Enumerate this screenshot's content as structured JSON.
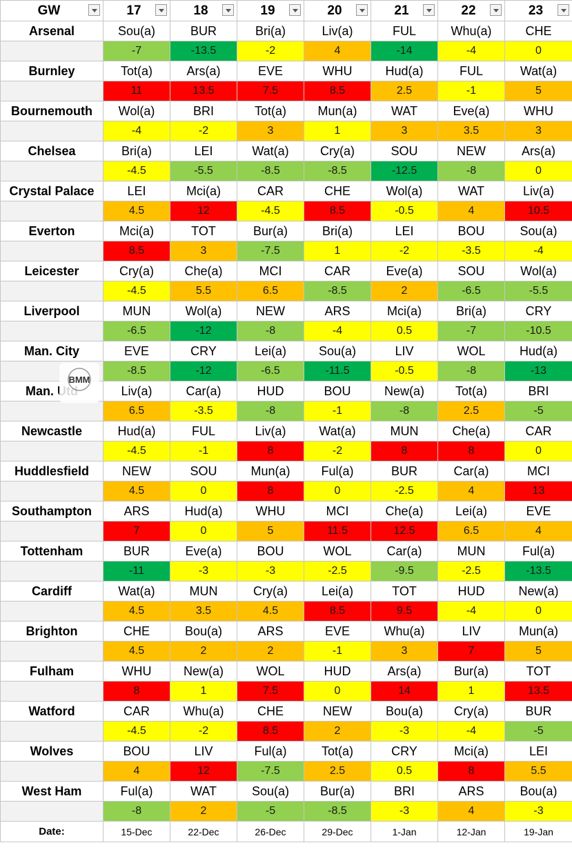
{
  "header": {
    "label": "GW",
    "gameweeks": [
      "17",
      "18",
      "19",
      "20",
      "21",
      "22",
      "23"
    ]
  },
  "colors": {
    "dark_green": "#00b050",
    "light_green": "#92d050",
    "yellow": "#ffff00",
    "orange": "#ffc000",
    "red": "#ff0000"
  },
  "teams": [
    {
      "name": "Arsenal",
      "fixtures": [
        "Sou(a)",
        "BUR",
        "Bri(a)",
        "Liv(a)",
        "FUL",
        "Whu(a)",
        "CHE"
      ],
      "scores": [
        "-7",
        "-13.5",
        "-2",
        "4",
        "-14",
        "-4",
        "0"
      ]
    },
    {
      "name": "Burnley",
      "fixtures": [
        "Tot(a)",
        "Ars(a)",
        "EVE",
        "WHU",
        "Hud(a)",
        "FUL",
        "Wat(a)"
      ],
      "scores": [
        "11",
        "13.5",
        "7.5",
        "8.5",
        "2.5",
        "-1",
        "5"
      ]
    },
    {
      "name": "Bournemouth",
      "fixtures": [
        "Wol(a)",
        "BRI",
        "Tot(a)",
        "Mun(a)",
        "WAT",
        "Eve(a)",
        "WHU"
      ],
      "scores": [
        "-4",
        "-2",
        "3",
        "1",
        "3",
        "3.5",
        "3"
      ]
    },
    {
      "name": "Chelsea",
      "fixtures": [
        "Bri(a)",
        "LEI",
        "Wat(a)",
        "Cry(a)",
        "SOU",
        "NEW",
        "Ars(a)"
      ],
      "scores": [
        "-4.5",
        "-5.5",
        "-8.5",
        "-8.5",
        "-12.5",
        "-8",
        "0"
      ]
    },
    {
      "name": "Crystal Palace",
      "fixtures": [
        "LEI",
        "Mci(a)",
        "CAR",
        "CHE",
        "Wol(a)",
        "WAT",
        "Liv(a)"
      ],
      "scores": [
        "4.5",
        "12",
        "-4.5",
        "8.5",
        "-0.5",
        "4",
        "10.5"
      ]
    },
    {
      "name": "Everton",
      "fixtures": [
        "Mci(a)",
        "TOT",
        "Bur(a)",
        "Bri(a)",
        "LEI",
        "BOU",
        "Sou(a)"
      ],
      "scores": [
        "8.5",
        "3",
        "-7.5",
        "1",
        "-2",
        "-3.5",
        "-4"
      ]
    },
    {
      "name": "Leicester",
      "fixtures": [
        "Cry(a)",
        "Che(a)",
        "MCI",
        "CAR",
        "Eve(a)",
        "SOU",
        "Wol(a)"
      ],
      "scores": [
        "-4.5",
        "5.5",
        "6.5",
        "-8.5",
        "2",
        "-6.5",
        "-5.5"
      ]
    },
    {
      "name": "Liverpool",
      "fixtures": [
        "MUN",
        "Wol(a)",
        "NEW",
        "ARS",
        "Mci(a)",
        "Bri(a)",
        "CRY"
      ],
      "scores": [
        "-6.5",
        "-12",
        "-8",
        "-4",
        "0.5",
        "-7",
        "-10.5"
      ]
    },
    {
      "name": "Man. City",
      "fixtures": [
        "EVE",
        "CRY",
        "Lei(a)",
        "Sou(a)",
        "LIV",
        "WOL",
        "Hud(a)"
      ],
      "scores": [
        "-8.5",
        "-12",
        "-6.5",
        "-11.5",
        "-0.5",
        "-8",
        "-13"
      ]
    },
    {
      "name": "Man. Utd",
      "fixtures": [
        "Liv(a)",
        "Car(a)",
        "HUD",
        "BOU",
        "New(a)",
        "Tot(a)",
        "BRI"
      ],
      "scores": [
        "6.5",
        "-3.5",
        "-8",
        "-1",
        "-8",
        "2.5",
        "-5"
      ]
    },
    {
      "name": "Newcastle",
      "fixtures": [
        "Hud(a)",
        "FUL",
        "Liv(a)",
        "Wat(a)",
        "MUN",
        "Che(a)",
        "CAR"
      ],
      "scores": [
        "-4.5",
        "-1",
        "8",
        "-2",
        "8",
        "8",
        "0"
      ]
    },
    {
      "name": "Huddlesfield",
      "fixtures": [
        "NEW",
        "SOU",
        "Mun(a)",
        "Ful(a)",
        "BUR",
        "Car(a)",
        "MCI"
      ],
      "scores": [
        "4.5",
        "0",
        "8",
        "0",
        "-2.5",
        "4",
        "13"
      ]
    },
    {
      "name": "Southampton",
      "fixtures": [
        "ARS",
        "Hud(a)",
        "WHU",
        "MCI",
        "Che(a)",
        "Lei(a)",
        "EVE"
      ],
      "scores": [
        "7",
        "0",
        "5",
        "11.5",
        "12.5",
        "6.5",
        "4"
      ]
    },
    {
      "name": "Tottenham",
      "fixtures": [
        "BUR",
        "Eve(a)",
        "BOU",
        "WOL",
        "Car(a)",
        "MUN",
        "Ful(a)"
      ],
      "scores": [
        "-11",
        "-3",
        "-3",
        "-2.5",
        "-9.5",
        "-2.5",
        "-13.5"
      ]
    },
    {
      "name": "Cardiff",
      "fixtures": [
        "Wat(a)",
        "MUN",
        "Cry(a)",
        "Lei(a)",
        "TOT",
        "HUD",
        "New(a)"
      ],
      "scores": [
        "4.5",
        "3.5",
        "4.5",
        "8.5",
        "9.5",
        "-4",
        "0"
      ]
    },
    {
      "name": "Brighton",
      "fixtures": [
        "CHE",
        "Bou(a)",
        "ARS",
        "EVE",
        "Whu(a)",
        "LIV",
        "Mun(a)"
      ],
      "scores": [
        "4.5",
        "2",
        "2",
        "-1",
        "3",
        "7",
        "5"
      ]
    },
    {
      "name": "Fulham",
      "fixtures": [
        "WHU",
        "New(a)",
        "WOL",
        "HUD",
        "Ars(a)",
        "Bur(a)",
        "TOT"
      ],
      "scores": [
        "8",
        "1",
        "7.5",
        "0",
        "14",
        "1",
        "13.5"
      ]
    },
    {
      "name": "Watford",
      "fixtures": [
        "CAR",
        "Whu(a)",
        "CHE",
        "NEW",
        "Bou(a)",
        "Cry(a)",
        "BUR"
      ],
      "scores": [
        "-4.5",
        "-2",
        "8.5",
        "2",
        "-3",
        "-4",
        "-5"
      ]
    },
    {
      "name": "Wolves",
      "fixtures": [
        "BOU",
        "LIV",
        "Ful(a)",
        "Tot(a)",
        "CRY",
        "Mci(a)",
        "LEI"
      ],
      "scores": [
        "4",
        "12",
        "-7.5",
        "2.5",
        "0.5",
        "8",
        "5.5"
      ]
    },
    {
      "name": "West Ham",
      "fixtures": [
        "Ful(a)",
        "WAT",
        "Sou(a)",
        "Bur(a)",
        "BRI",
        "ARS",
        "Bou(a)"
      ],
      "scores": [
        "-8",
        "2",
        "-5",
        "-8.5",
        "-3",
        "4",
        "-3"
      ]
    }
  ],
  "dates": {
    "label": "Date:",
    "values": [
      "15-Dec",
      "22-Dec",
      "26-Dec",
      "29-Dec",
      "1-Jan",
      "12-Jan",
      "19-Jan"
    ]
  },
  "logo": {
    "text": "BMM",
    "icon": "fantasy-football-logo-icon"
  }
}
